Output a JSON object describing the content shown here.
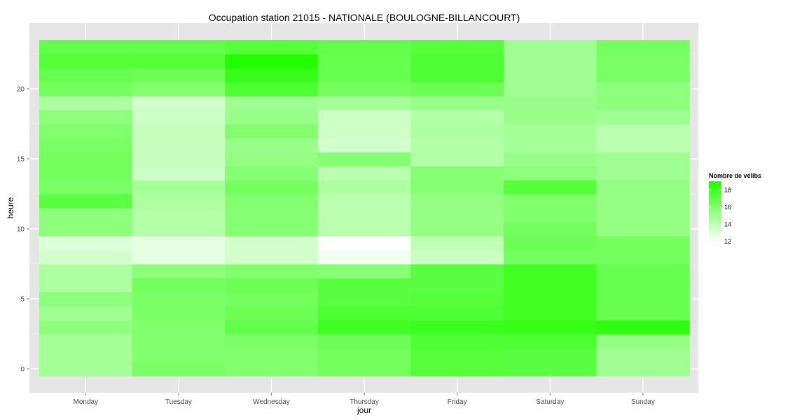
{
  "chart_data": {
    "type": "heatmap",
    "title": "Occupation station 21015 - NATIONALE (BOULOGNE-BILLANCOURT)",
    "xlabel": "jour",
    "ylabel": "heure",
    "categories": [
      "Monday",
      "Tuesday",
      "Wednesday",
      "Thursday",
      "Friday",
      "Saturday",
      "Sunday"
    ],
    "hours": [
      0,
      1,
      2,
      3,
      4,
      5,
      6,
      7,
      8,
      9,
      10,
      11,
      12,
      13,
      14,
      15,
      16,
      17,
      18,
      19,
      20,
      21,
      22,
      23
    ],
    "y_ticks": [
      0,
      5,
      10,
      15,
      20
    ],
    "ylim": [
      -0.5,
      23.5
    ],
    "values": [
      [
        14.8,
        16.2,
        16.0,
        16.4,
        17.4,
        17.2,
        15.0
      ],
      [
        14.8,
        16.0,
        16.0,
        16.4,
        17.4,
        17.2,
        15.0
      ],
      [
        14.8,
        16.0,
        16.2,
        16.6,
        17.6,
        17.6,
        15.4
      ],
      [
        15.6,
        16.0,
        17.0,
        18.0,
        18.2,
        18.4,
        18.6
      ],
      [
        15.0,
        16.2,
        16.6,
        17.6,
        17.6,
        18.0,
        16.8
      ],
      [
        15.6,
        16.2,
        16.4,
        17.2,
        17.4,
        18.0,
        16.8
      ],
      [
        14.6,
        16.4,
        16.6,
        17.2,
        17.2,
        18.0,
        16.8
      ],
      [
        14.6,
        15.6,
        16.0,
        15.8,
        17.2,
        18.0,
        16.8
      ],
      [
        13.4,
        12.8,
        13.4,
        12.4,
        13.6,
        16.4,
        16.4
      ],
      [
        13.0,
        12.8,
        13.4,
        12.0,
        14.0,
        16.6,
        16.4
      ],
      [
        15.6,
        14.4,
        15.8,
        14.2,
        15.4,
        16.4,
        15.4
      ],
      [
        15.6,
        14.4,
        15.8,
        14.2,
        15.4,
        16.0,
        15.4
      ],
      [
        17.2,
        14.6,
        16.0,
        14.2,
        15.4,
        16.0,
        15.4
      ],
      [
        16.2,
        14.8,
        16.4,
        14.6,
        15.8,
        17.4,
        15.4
      ],
      [
        16.4,
        13.6,
        15.8,
        14.2,
        15.8,
        15.6,
        15.0
      ],
      [
        16.4,
        13.8,
        15.4,
        15.8,
        14.4,
        15.2,
        15.0
      ],
      [
        16.2,
        13.8,
        15.2,
        13.4,
        14.4,
        14.8,
        14.2
      ],
      [
        16.0,
        13.8,
        16.0,
        13.6,
        14.6,
        14.8,
        14.2
      ],
      [
        15.6,
        13.6,
        15.2,
        13.6,
        14.4,
        15.2,
        15.0
      ],
      [
        14.6,
        13.4,
        15.0,
        14.8,
        15.2,
        15.2,
        15.6
      ],
      [
        16.4,
        16.0,
        17.6,
        16.4,
        16.6,
        15.0,
        15.6
      ],
      [
        16.8,
        16.6,
        18.4,
        16.8,
        17.6,
        15.0,
        16.2
      ],
      [
        17.4,
        17.4,
        19.0,
        16.8,
        17.6,
        15.0,
        16.2
      ],
      [
        17.0,
        17.0,
        17.4,
        17.0,
        17.4,
        15.0,
        16.4
      ]
    ],
    "legend": {
      "title": "Nombre de vélibs",
      "position": "right",
      "ticks": [
        12,
        14,
        16,
        18
      ],
      "range": [
        12,
        19
      ],
      "low_color": "#ffffff",
      "high_color": "#22ff00"
    },
    "grid": true,
    "panel_color": "#e5e5e5"
  }
}
